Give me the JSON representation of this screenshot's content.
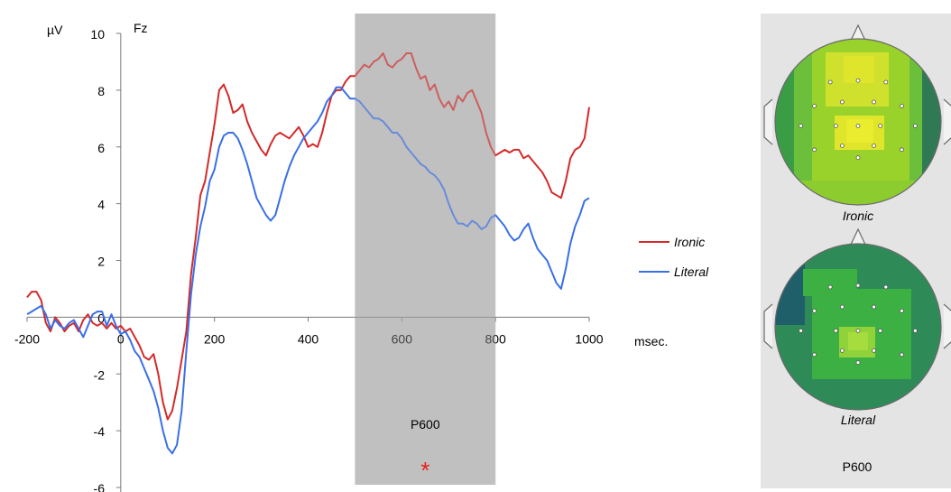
{
  "chart_data": [
    {
      "type": "line",
      "title": "Fz",
      "ylabel": "µV",
      "xlabel": "msec.",
      "xlim": [
        -200,
        1000
      ],
      "ylim": [
        -6,
        10
      ],
      "x_ticks": [
        -200,
        0,
        200,
        400,
        600,
        800,
        1000
      ],
      "y_ticks": [
        -6,
        -4,
        -2,
        0,
        2,
        4,
        6,
        8,
        10
      ],
      "x_tick_labels": [
        "-200",
        "0",
        "200",
        "400",
        "600",
        "800",
        "1000"
      ],
      "y_tick_labels": [
        "-6",
        "-4",
        "-2",
        "0",
        "2",
        "4",
        "6",
        "8",
        "10"
      ],
      "grid": false,
      "legend_position": "right",
      "shaded_window": {
        "x_start": 500,
        "x_end": 800,
        "label": "P600",
        "marker": "*",
        "marker_color": "#e8211d",
        "color": "#c0c0c0"
      },
      "series": [
        {
          "name": "Ironic",
          "color": "#d42a2a",
          "points": [
            [
              -200,
              0.7
            ],
            [
              -190,
              0.9
            ],
            [
              -180,
              0.9
            ],
            [
              -170,
              0.6
            ],
            [
              -160,
              -0.2
            ],
            [
              -150,
              -0.5
            ],
            [
              -140,
              0
            ],
            [
              -130,
              -0.2
            ],
            [
              -120,
              -0.5
            ],
            [
              -110,
              -0.3
            ],
            [
              -100,
              -0.2
            ],
            [
              -90,
              -0.5
            ],
            [
              -80,
              -0.1
            ],
            [
              -70,
              0.1
            ],
            [
              -60,
              -0.2
            ],
            [
              -50,
              -0.3
            ],
            [
              -40,
              -0.2
            ],
            [
              -30,
              -0.4
            ],
            [
              -20,
              -0.2
            ],
            [
              -10,
              -0.4
            ],
            [
              0,
              -0.3
            ],
            [
              10,
              -0.5
            ],
            [
              20,
              -0.4
            ],
            [
              30,
              -0.7
            ],
            [
              40,
              -1.0
            ],
            [
              50,
              -1.4
            ],
            [
              60,
              -1.5
            ],
            [
              70,
              -1.3
            ],
            [
              80,
              -2.0
            ],
            [
              90,
              -3.0
            ],
            [
              100,
              -3.6
            ],
            [
              110,
              -3.3
            ],
            [
              120,
              -2.5
            ],
            [
              140,
              -0.5
            ],
            [
              150,
              1.5
            ],
            [
              160,
              2.8
            ],
            [
              170,
              4.3
            ],
            [
              180,
              4.8
            ],
            [
              190,
              5.8
            ],
            [
              200,
              6.8
            ],
            [
              210,
              8.0
            ],
            [
              220,
              8.2
            ],
            [
              230,
              7.8
            ],
            [
              240,
              7.2
            ],
            [
              250,
              7.3
            ],
            [
              260,
              7.5
            ],
            [
              270,
              6.9
            ],
            [
              280,
              6.5
            ],
            [
              290,
              6.2
            ],
            [
              300,
              5.9
            ],
            [
              310,
              5.7
            ],
            [
              320,
              6.1
            ],
            [
              330,
              6.4
            ],
            [
              340,
              6.5
            ],
            [
              350,
              6.4
            ],
            [
              360,
              6.3
            ],
            [
              370,
              6.5
            ],
            [
              380,
              6.7
            ],
            [
              390,
              6.4
            ],
            [
              400,
              6.0
            ],
            [
              410,
              6.1
            ],
            [
              420,
              6.0
            ],
            [
              430,
              6.5
            ],
            [
              440,
              7.2
            ],
            [
              450,
              7.8
            ],
            [
              460,
              8.0
            ],
            [
              470,
              8.0
            ],
            [
              480,
              8.3
            ],
            [
              490,
              8.5
            ],
            [
              500,
              8.5
            ],
            [
              510,
              8.7
            ],
            [
              520,
              8.9
            ],
            [
              530,
              8.8
            ],
            [
              540,
              9.0
            ],
            [
              550,
              9.1
            ],
            [
              560,
              9.3
            ],
            [
              570,
              8.9
            ],
            [
              580,
              8.8
            ],
            [
              590,
              9.0
            ],
            [
              600,
              9.1
            ],
            [
              610,
              9.3
            ],
            [
              620,
              9.3
            ],
            [
              630,
              8.8
            ],
            [
              640,
              8.4
            ],
            [
              650,
              8.5
            ],
            [
              660,
              8.0
            ],
            [
              670,
              8.2
            ],
            [
              680,
              7.7
            ],
            [
              690,
              7.4
            ],
            [
              700,
              7.6
            ],
            [
              710,
              7.3
            ],
            [
              720,
              7.8
            ],
            [
              730,
              7.6
            ],
            [
              740,
              7.9
            ],
            [
              750,
              8.0
            ],
            [
              760,
              7.6
            ],
            [
              770,
              7.2
            ],
            [
              780,
              6.5
            ],
            [
              790,
              6.0
            ],
            [
              800,
              5.7
            ],
            [
              810,
              5.8
            ],
            [
              820,
              5.9
            ],
            [
              830,
              5.8
            ],
            [
              840,
              5.9
            ],
            [
              850,
              5.9
            ],
            [
              860,
              5.6
            ],
            [
              870,
              5.7
            ],
            [
              880,
              5.5
            ],
            [
              890,
              5.3
            ],
            [
              900,
              5.1
            ],
            [
              910,
              4.8
            ],
            [
              920,
              4.4
            ],
            [
              930,
              4.3
            ],
            [
              940,
              4.2
            ],
            [
              950,
              4.8
            ],
            [
              960,
              5.6
            ],
            [
              970,
              5.9
            ],
            [
              980,
              6.0
            ],
            [
              990,
              6.3
            ],
            [
              1000,
              7.4
            ]
          ]
        },
        {
          "name": "Literal",
          "color": "#3a6fe8",
          "points": [
            [
              -200,
              0.1
            ],
            [
              -190,
              0.2
            ],
            [
              -180,
              0.3
            ],
            [
              -170,
              0.4
            ],
            [
              -160,
              0.1
            ],
            [
              -150,
              -0.4
            ],
            [
              -140,
              -0.1
            ],
            [
              -130,
              -0.3
            ],
            [
              -120,
              -0.4
            ],
            [
              -110,
              -0.2
            ],
            [
              -100,
              -0.1
            ],
            [
              -90,
              -0.4
            ],
            [
              -80,
              -0.7
            ],
            [
              -70,
              -0.3
            ],
            [
              -60,
              0.1
            ],
            [
              -50,
              0.2
            ],
            [
              -40,
              0.2
            ],
            [
              -30,
              -0.3
            ],
            [
              -20,
              0.1
            ],
            [
              -10,
              -0.3
            ],
            [
              0,
              -0.6
            ],
            [
              10,
              -0.5
            ],
            [
              20,
              -0.8
            ],
            [
              30,
              -1.2
            ],
            [
              40,
              -1.4
            ],
            [
              50,
              -1.8
            ],
            [
              60,
              -2.2
            ],
            [
              70,
              -2.6
            ],
            [
              80,
              -3.2
            ],
            [
              90,
              -4.0
            ],
            [
              100,
              -4.6
            ],
            [
              110,
              -4.8
            ],
            [
              120,
              -4.5
            ],
            [
              130,
              -3.3
            ],
            [
              140,
              -1.2
            ],
            [
              150,
              0.8
            ],
            [
              160,
              2.2
            ],
            [
              170,
              3.2
            ],
            [
              180,
              3.9
            ],
            [
              190,
              4.8
            ],
            [
              200,
              5.2
            ],
            [
              210,
              6.0
            ],
            [
              220,
              6.4
            ],
            [
              230,
              6.5
            ],
            [
              240,
              6.5
            ],
            [
              250,
              6.3
            ],
            [
              260,
              5.9
            ],
            [
              270,
              5.4
            ],
            [
              280,
              4.8
            ],
            [
              290,
              4.2
            ],
            [
              300,
              3.9
            ],
            [
              310,
              3.6
            ],
            [
              320,
              3.4
            ],
            [
              330,
              3.6
            ],
            [
              340,
              4.2
            ],
            [
              350,
              4.8
            ],
            [
              360,
              5.3
            ],
            [
              370,
              5.7
            ],
            [
              380,
              6.0
            ],
            [
              390,
              6.3
            ],
            [
              400,
              6.5
            ],
            [
              410,
              6.7
            ],
            [
              420,
              6.9
            ],
            [
              430,
              7.2
            ],
            [
              440,
              7.6
            ],
            [
              450,
              7.8
            ],
            [
              460,
              8.1
            ],
            [
              470,
              8.1
            ],
            [
              480,
              7.9
            ],
            [
              490,
              7.7
            ],
            [
              500,
              7.7
            ],
            [
              510,
              7.6
            ],
            [
              520,
              7.4
            ],
            [
              530,
              7.2
            ],
            [
              540,
              7.0
            ],
            [
              550,
              7.0
            ],
            [
              560,
              6.9
            ],
            [
              570,
              6.7
            ],
            [
              580,
              6.5
            ],
            [
              590,
              6.5
            ],
            [
              600,
              6.3
            ],
            [
              610,
              6.0
            ],
            [
              620,
              5.8
            ],
            [
              630,
              5.6
            ],
            [
              640,
              5.4
            ],
            [
              650,
              5.3
            ],
            [
              660,
              5.1
            ],
            [
              670,
              5.0
            ],
            [
              680,
              4.8
            ],
            [
              690,
              4.5
            ],
            [
              700,
              4.0
            ],
            [
              710,
              3.6
            ],
            [
              720,
              3.3
            ],
            [
              730,
              3.3
            ],
            [
              740,
              3.2
            ],
            [
              750,
              3.4
            ],
            [
              760,
              3.3
            ],
            [
              770,
              3.1
            ],
            [
              780,
              3.2
            ],
            [
              790,
              3.5
            ],
            [
              800,
              3.6
            ],
            [
              810,
              3.4
            ],
            [
              820,
              3.2
            ],
            [
              830,
              2.9
            ],
            [
              840,
              2.7
            ],
            [
              850,
              2.8
            ],
            [
              860,
              3.1
            ],
            [
              870,
              3.3
            ],
            [
              880,
              2.8
            ],
            [
              890,
              2.4
            ],
            [
              900,
              2.2
            ],
            [
              910,
              2.0
            ],
            [
              920,
              1.6
            ],
            [
              930,
              1.2
            ],
            [
              940,
              1.0
            ],
            [
              950,
              1.7
            ],
            [
              960,
              2.6
            ],
            [
              970,
              3.2
            ],
            [
              980,
              3.6
            ],
            [
              990,
              4.1
            ],
            [
              1000,
              4.2
            ]
          ]
        }
      ]
    }
  ],
  "scalp_maps": {
    "bottom_label": "P600",
    "panel_color": "#e4e4e4",
    "maps": [
      {
        "label": "Ironic",
        "colors": {
          "base": "#9ad22c",
          "edge_left": "#3a9c44",
          "edge_dark": "#2f7a54",
          "center": "#dfe52a",
          "core": "#eaed2d"
        }
      },
      {
        "label": "Literal",
        "colors": {
          "base": "#2e8b57",
          "mid": "#3cb043",
          "core": "#8fd23a",
          "dark_edge": "#1f5f6a"
        }
      }
    ]
  }
}
